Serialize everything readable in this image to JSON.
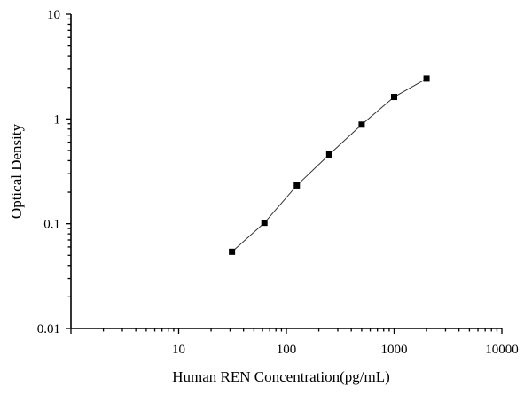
{
  "chart_data": {
    "type": "scatter",
    "title": "",
    "xlabel": "Human REN Concentration(pg/mL)",
    "ylabel": "Optical Density",
    "x_scale": "log",
    "y_scale": "log",
    "xlim": [
      1,
      10000
    ],
    "ylim": [
      0.01,
      10
    ],
    "x_tick_labels": [
      "10",
      "100",
      "1000",
      "10000"
    ],
    "y_tick_labels": [
      "0.01",
      "0.1",
      "1",
      "10"
    ],
    "grid": false,
    "legend": "none",
    "marker": "square",
    "connected": true,
    "series": [
      {
        "x": [
          31.25,
          62.5,
          125,
          250,
          500,
          1000,
          2000
        ],
        "y": [
          0.054,
          0.102,
          0.232,
          0.458,
          0.882,
          1.62,
          2.42
        ]
      }
    ]
  }
}
